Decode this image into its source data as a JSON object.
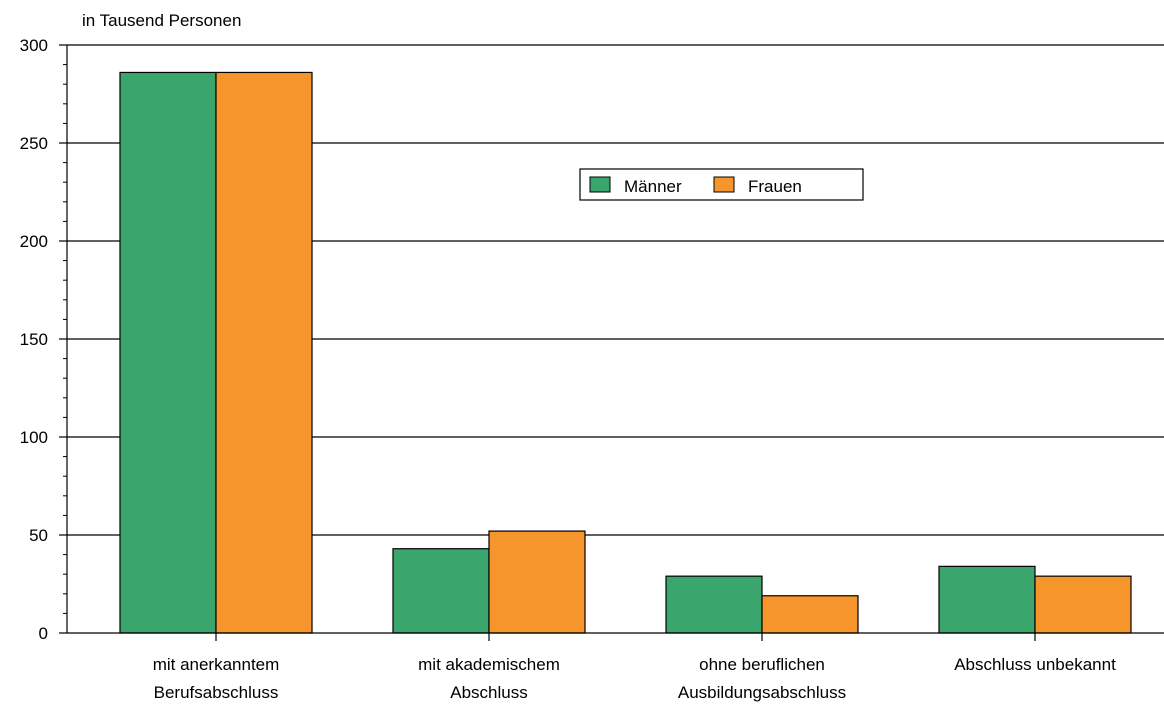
{
  "chart_data": {
    "type": "bar",
    "unit_label": "in Tausend Personen",
    "categories": [
      [
        "mit anerkanntem",
        "Berufsabschluss"
      ],
      [
        "mit akademischem",
        "Abschluss"
      ],
      [
        "ohne beruflichen",
        "Ausbildungsabschluss"
      ],
      [
        "Abschluss unbekannt"
      ]
    ],
    "series": [
      {
        "name": "Männer",
        "color": "#3aa56c",
        "values": [
          286,
          43,
          29,
          34
        ]
      },
      {
        "name": "Frauen",
        "color": "#f7952d",
        "values": [
          286,
          52,
          19,
          29
        ]
      }
    ],
    "ylim": [
      0,
      300
    ],
    "yticks": [
      0,
      50,
      100,
      150,
      200,
      250,
      300
    ],
    "grid": true,
    "legend": "top-center"
  }
}
